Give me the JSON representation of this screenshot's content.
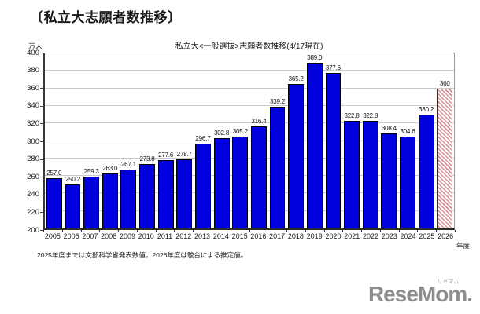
{
  "page_title": "〔私立大志願者数推移〕",
  "chart": {
    "title": "私立大<一般選抜>志願者数推移(4/17現在)",
    "y_axis_unit": "万人",
    "x_axis_unit": "年度",
    "footnote": "2025年度までは文部科学省発表数値。2026年度は駿台による推定値。"
  },
  "chart_data": {
    "type": "bar",
    "title": "私立大<一般選抜>志願者数推移(4/17現在)",
    "ylabel": "万人",
    "xlabel": "年度",
    "ylim": [
      200,
      400
    ],
    "ytick_step": 20,
    "grid": true,
    "legend": "none",
    "categories": [
      "2005",
      "2006",
      "2007",
      "2008",
      "2009",
      "2010",
      "2011",
      "2012",
      "2013",
      "2014",
      "2015",
      "2016",
      "2017",
      "2018",
      "2019",
      "2020",
      "2021",
      "2022",
      "2023",
      "2024",
      "2025",
      "2026"
    ],
    "values": [
      257.0,
      250.2,
      259.3,
      263.0,
      267.1,
      273.8,
      277.6,
      278.7,
      296.7,
      302.8,
      305.2,
      316.4,
      339.2,
      365.2,
      389.0,
      377.6,
      322.8,
      322.8,
      308.4,
      304.6,
      330.2,
      360
    ],
    "value_labels": [
      "257.0",
      "250.2",
      "259.3",
      "263.0",
      "267.1",
      "273.8",
      "277.6",
      "278.7",
      "296.7",
      "302.8",
      "305.2",
      "316.4",
      "339.2",
      "365.2",
      "389.0",
      "377.6",
      "322.8",
      "322.8",
      "308.4",
      "304.6",
      "330.2",
      "360"
    ],
    "estimate_category": "2026"
  },
  "colors": {
    "bar": "#0000dd",
    "bar_border": "#000000",
    "estimate_fill": "#ffffff",
    "estimate_stripe": "#d98f8f",
    "estimate_border": "#3a2a2a",
    "grid": "#c9c9c9",
    "axis": "#2a2a2a",
    "logo": "#8d8d8d"
  },
  "logo": {
    "text": "ReseMom.",
    "ruby": "リセマム"
  }
}
